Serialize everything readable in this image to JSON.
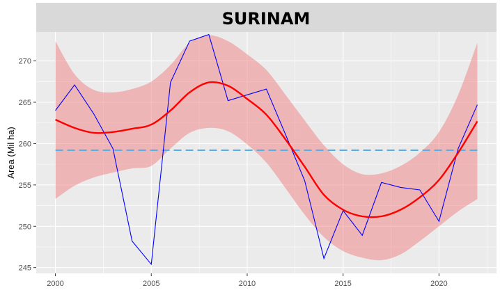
{
  "chart_data": {
    "type": "line",
    "title": "SURINAM",
    "xlabel": "",
    "ylabel": "Area (Mil ha)",
    "xlim": [
      1999,
      2023
    ],
    "ylim": [
      244.3,
      273.5
    ],
    "x_ticks": [
      2000,
      2005,
      2010,
      2015,
      2020
    ],
    "y_ticks": [
      245,
      250,
      255,
      260,
      265,
      270
    ],
    "grid": true,
    "legend": "none",
    "series": [
      {
        "kind": "line",
        "color": "#0000ff",
        "x": [
          2000,
          2001,
          2002,
          2003,
          2004,
          2005,
          2006,
          2007,
          2008,
          2009,
          2010,
          2011,
          2012,
          2013,
          2014,
          2015,
          2016,
          2017,
          2018,
          2019,
          2020,
          2021,
          2022
        ],
        "y": [
          264.0,
          267.1,
          263.6,
          259.4,
          248.2,
          245.4,
          267.4,
          272.4,
          273.2,
          265.2,
          265.9,
          266.6,
          261.1,
          255.5,
          246.1,
          251.9,
          248.9,
          255.3,
          254.7,
          254.4,
          250.6,
          259.4,
          264.7
        ]
      },
      {
        "kind": "smooth",
        "color": "#ff0000",
        "band_color": "#f08080",
        "x": [
          2000,
          2001,
          2002,
          2003,
          2004,
          2005,
          2006,
          2007,
          2008,
          2009,
          2010,
          2011,
          2012,
          2013,
          2014,
          2015,
          2016,
          2017,
          2018,
          2019,
          2020,
          2021,
          2022
        ],
        "y": [
          262.9,
          261.9,
          261.3,
          261.4,
          261.8,
          262.3,
          264.0,
          266.2,
          267.4,
          267.0,
          265.4,
          263.5,
          260.5,
          257.2,
          253.8,
          252.0,
          251.2,
          251.2,
          252.0,
          253.5,
          255.6,
          258.9,
          262.7
        ],
        "lower": [
          253.3,
          254.9,
          255.9,
          256.5,
          257.0,
          257.3,
          259.4,
          261.3,
          261.9,
          261.5,
          259.9,
          257.7,
          254.6,
          251.4,
          248.7,
          247.0,
          246.2,
          245.9,
          246.6,
          248.2,
          250.0,
          251.8,
          253.3
        ],
        "upper": [
          272.4,
          268.4,
          266.5,
          266.2,
          266.6,
          267.5,
          269.5,
          272.2,
          273.1,
          272.4,
          270.8,
          268.9,
          265.9,
          262.8,
          259.8,
          257.5,
          256.3,
          256.4,
          257.3,
          258.9,
          261.4,
          265.9,
          272.2
        ]
      },
      {
        "kind": "hline",
        "color": "#5dade2",
        "dashed": true,
        "y": 259.2
      }
    ]
  }
}
